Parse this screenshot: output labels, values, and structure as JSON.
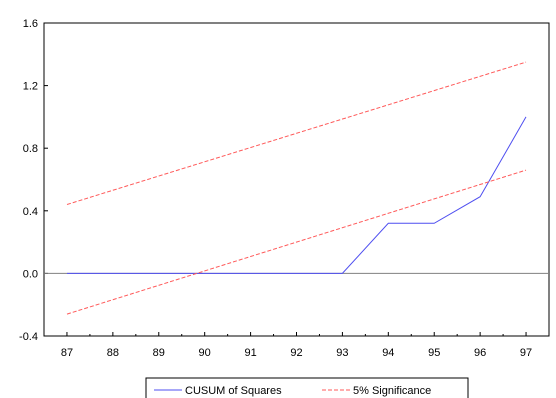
{
  "chart_data": {
    "type": "line",
    "x": [
      87,
      88,
      89,
      90,
      91,
      92,
      93,
      94,
      95,
      96,
      97
    ],
    "xtick_labels": [
      "87",
      "88",
      "89",
      "90",
      "91",
      "92",
      "93",
      "94",
      "95",
      "96",
      "97"
    ],
    "xlim": [
      86.5,
      97.5
    ],
    "ylim": [
      -0.4,
      1.6
    ],
    "yticks": [
      -0.4,
      0.0,
      0.4,
      0.8,
      1.2,
      1.6
    ],
    "ytick_labels": [
      "-0.4",
      "0.0",
      "0.4",
      "0.8",
      "1.2",
      "1.6"
    ],
    "zero_line": 0.0,
    "title": "",
    "xlabel": "",
    "ylabel": "",
    "grid": false,
    "legend_position": "bottom-center",
    "series": [
      {
        "name": "CUSUM of Squares",
        "style": "solid",
        "color": "#4f4ff0",
        "points": [
          [
            87,
            0.0
          ],
          [
            88,
            0.0
          ],
          [
            89,
            0.0
          ],
          [
            90,
            0.0
          ],
          [
            91,
            0.0
          ],
          [
            92,
            0.0
          ],
          [
            93,
            0.0
          ],
          [
            94,
            0.32
          ],
          [
            95,
            0.32
          ],
          [
            96,
            0.49
          ],
          [
            97,
            1.0
          ]
        ]
      },
      {
        "name": "5% Significance",
        "style": "dashed",
        "color": "#ff5a5a",
        "points": [
          [
            87,
            0.44
          ],
          [
            97,
            1.35
          ]
        ]
      },
      {
        "name": "",
        "style": "dashed",
        "color": "#ff5a5a",
        "points": [
          [
            87,
            -0.26
          ],
          [
            97,
            0.66
          ]
        ]
      }
    ],
    "zero_line_color": "#808080",
    "axis_color": "#000000"
  }
}
